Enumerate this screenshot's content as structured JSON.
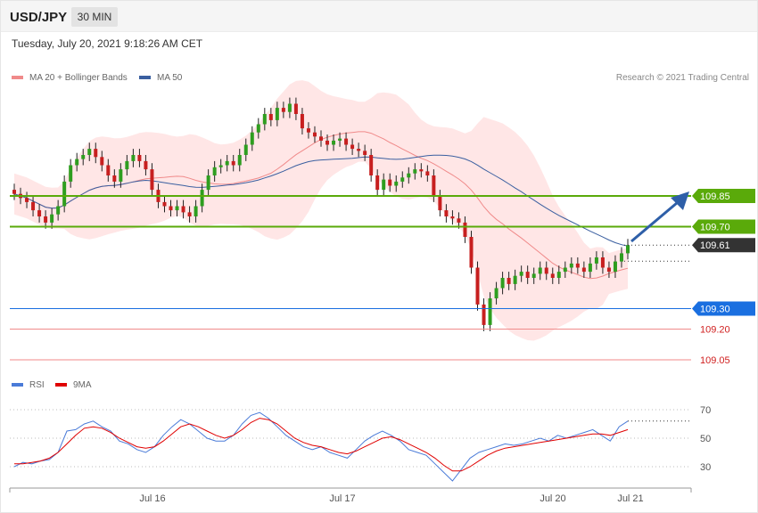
{
  "header": {
    "symbol": "USD/JPY",
    "timeframe": "30 MIN",
    "datetime": "Tuesday, July 20, 2021 9:18:26 AM CET"
  },
  "legend_main": [
    {
      "label": "MA 20 + Bollinger Bands",
      "color": "#f08a8a"
    },
    {
      "label": "MA 50",
      "color": "#3a5fa0"
    }
  ],
  "credit": "Research © 2021 Trading Central",
  "legend_rsi": [
    {
      "label": "RSI",
      "color": "#4a7bd8"
    },
    {
      "label": "9MA",
      "color": "#e00000"
    }
  ],
  "colors": {
    "up": "#2e9e1f",
    "down": "#c71f1f",
    "green_level": "#5aaa0a",
    "blue_level": "#1a6fe0",
    "red_level": "#f08a8a",
    "current": "#333333",
    "arrow": "#2e5fa8"
  },
  "chart_data": {
    "type": "candlestick",
    "price_range": [
      109.0,
      110.35
    ],
    "x_labels": [
      "Jul 16",
      "Jul 17",
      "Jul 20",
      "Jul 21"
    ],
    "levels": [
      {
        "value": 109.85,
        "label": "109.85",
        "kind": "resistance"
      },
      {
        "value": 109.7,
        "label": "109.70",
        "kind": "resistance"
      },
      {
        "value": 109.61,
        "label": "109.61",
        "kind": "current"
      },
      {
        "value": 109.3,
        "label": "109.30",
        "kind": "pivot"
      },
      {
        "value": 109.2,
        "label": "109.20",
        "kind": "support"
      },
      {
        "value": 109.05,
        "label": "109.05",
        "kind": "support"
      }
    ],
    "close_series": [
      109.86,
      109.84,
      109.82,
      109.78,
      109.75,
      109.72,
      109.76,
      109.8,
      109.92,
      110.0,
      110.03,
      110.05,
      110.08,
      110.04,
      110.0,
      109.95,
      109.92,
      109.98,
      110.02,
      110.05,
      110.02,
      109.98,
      109.88,
      109.82,
      109.8,
      109.78,
      109.8,
      109.77,
      109.75,
      109.8,
      109.88,
      109.95,
      109.99,
      110.0,
      110.02,
      110.0,
      110.05,
      110.1,
      110.16,
      110.2,
      110.25,
      110.22,
      110.28,
      110.26,
      110.3,
      110.25,
      110.18,
      110.16,
      110.14,
      110.12,
      110.1,
      110.12,
      110.13,
      110.1,
      110.08,
      110.07,
      110.05,
      109.95,
      109.88,
      109.93,
      109.9,
      109.92,
      109.94,
      109.96,
      109.98,
      109.97,
      109.95,
      109.85,
      109.78,
      109.75,
      109.74,
      109.72,
      109.65,
      109.5,
      109.32,
      109.22,
      109.35,
      109.4,
      109.45,
      109.42,
      109.46,
      109.48,
      109.45,
      109.47,
      109.5,
      109.47,
      109.45,
      109.48,
      109.5,
      109.52,
      109.5,
      109.48,
      109.52,
      109.55,
      109.5,
      109.48,
      109.53,
      109.57,
      109.61
    ],
    "rsi": {
      "ticks": [
        30,
        50,
        70
      ],
      "range": [
        20,
        80
      ],
      "last": 62,
      "values": [
        30,
        33,
        32,
        34,
        35,
        40,
        55,
        56,
        60,
        62,
        58,
        55,
        48,
        46,
        42,
        40,
        44,
        52,
        58,
        63,
        60,
        55,
        50,
        48,
        48,
        52,
        60,
        66,
        68,
        64,
        58,
        52,
        48,
        44,
        42,
        44,
        40,
        38,
        36,
        42,
        48,
        52,
        55,
        52,
        48,
        42,
        40,
        38,
        32,
        26,
        20,
        28,
        36,
        40,
        42,
        44,
        46,
        45,
        46,
        48,
        50,
        48,
        52,
        50,
        52,
        54,
        56,
        52,
        48,
        58,
        62
      ],
      "ma_values": [
        32,
        32,
        33,
        34,
        36,
        40,
        46,
        52,
        57,
        58,
        57,
        54,
        50,
        47,
        44,
        43,
        44,
        48,
        53,
        58,
        60,
        58,
        55,
        52,
        50,
        52,
        56,
        61,
        64,
        63,
        60,
        55,
        50,
        47,
        45,
        44,
        42,
        40,
        39,
        41,
        44,
        47,
        50,
        51,
        49,
        46,
        43,
        40,
        36,
        31,
        27,
        27,
        30,
        34,
        38,
        41,
        43,
        44,
        45,
        46,
        47,
        48,
        49,
        50,
        51,
        52,
        53,
        53,
        52,
        54,
        56
      ]
    }
  }
}
